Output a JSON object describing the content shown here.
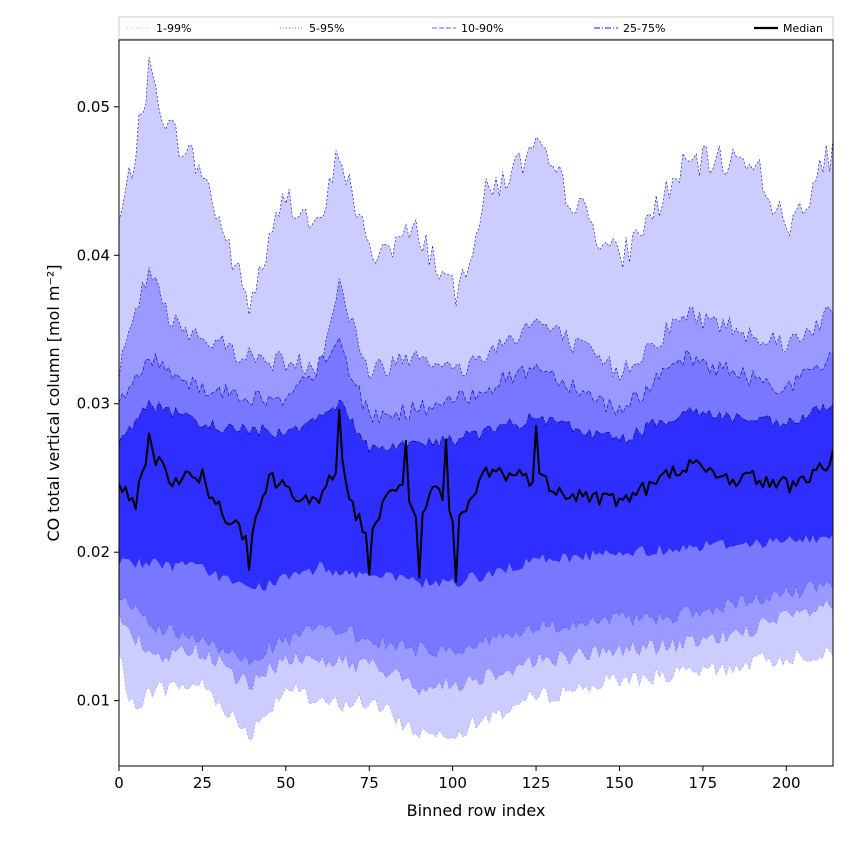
{
  "chart_data": {
    "type": "area",
    "xlabel": "Binned row index",
    "ylabel": "CO total vertical column [mol m⁻²]",
    "xlim": [
      0,
      214
    ],
    "ylim": [
      0.0056,
      0.0545
    ],
    "xticks": [
      0,
      25,
      50,
      75,
      100,
      125,
      150,
      175,
      200
    ],
    "yticks": [
      0.01,
      0.02,
      0.03,
      0.04,
      0.05
    ],
    "ytick_labels": [
      "0.01",
      "0.02",
      "0.03",
      "0.04",
      "0.05"
    ],
    "grid": false,
    "legend_position": "top",
    "legend": [
      {
        "label": "1-99%",
        "style": "dotted",
        "color": "#c8c8ff"
      },
      {
        "label": "5-95%",
        "style": "dotted",
        "color": "#7777ff"
      },
      {
        "label": "10-90%",
        "style": "dashed",
        "color": "#8080ff"
      },
      {
        "label": "25-75%",
        "style": "dashdot",
        "color": "#4444ff"
      },
      {
        "label": "Median",
        "style": "solid",
        "color": "#000000"
      }
    ],
    "bands": [
      {
        "name": "1-99%",
        "fill": "#ccccff",
        "stroke": "#0000cc",
        "low_anchors": [
          [
            0,
            0.0135
          ],
          [
            3,
            0.0095
          ],
          [
            10,
            0.0108
          ],
          [
            25,
            0.0112
          ],
          [
            39,
            0.0078
          ],
          [
            50,
            0.011
          ],
          [
            60,
            0.0098
          ],
          [
            75,
            0.01
          ],
          [
            90,
            0.0079
          ],
          [
            101,
            0.008
          ],
          [
            125,
            0.0103
          ],
          [
            150,
            0.0115
          ],
          [
            175,
            0.012
          ],
          [
            200,
            0.013
          ],
          [
            214,
            0.0135
          ]
        ],
        "high_anchors": [
          [
            0,
            0.042
          ],
          [
            5,
            0.047
          ],
          [
            9,
            0.0523
          ],
          [
            15,
            0.0485
          ],
          [
            25,
            0.0455
          ],
          [
            39,
            0.0365
          ],
          [
            50,
            0.044
          ],
          [
            60,
            0.0415
          ],
          [
            66,
            0.047
          ],
          [
            75,
            0.04
          ],
          [
            90,
            0.0415
          ],
          [
            101,
            0.037
          ],
          [
            110,
            0.044
          ],
          [
            125,
            0.047
          ],
          [
            150,
            0.0395
          ],
          [
            170,
            0.046
          ],
          [
            190,
            0.0465
          ],
          [
            200,
            0.0415
          ],
          [
            214,
            0.047
          ]
        ],
        "low_noise": 0.0012,
        "high_noise": 0.0022
      },
      {
        "name": "5-95%",
        "fill": "#9999ff",
        "stroke": "#0000cc",
        "low_anchors": [
          [
            0,
            0.0155
          ],
          [
            10,
            0.013
          ],
          [
            25,
            0.0135
          ],
          [
            39,
            0.011
          ],
          [
            50,
            0.013
          ],
          [
            75,
            0.0125
          ],
          [
            90,
            0.011
          ],
          [
            101,
            0.0112
          ],
          [
            125,
            0.0128
          ],
          [
            150,
            0.0135
          ],
          [
            175,
            0.014
          ],
          [
            214,
            0.0165
          ]
        ],
        "high_anchors": [
          [
            0,
            0.032
          ],
          [
            9,
            0.039
          ],
          [
            15,
            0.0355
          ],
          [
            25,
            0.0345
          ],
          [
            40,
            0.033
          ],
          [
            60,
            0.0325
          ],
          [
            66,
            0.038
          ],
          [
            75,
            0.032
          ],
          [
            90,
            0.0335
          ],
          [
            101,
            0.032
          ],
          [
            125,
            0.0355
          ],
          [
            150,
            0.032
          ],
          [
            170,
            0.036
          ],
          [
            200,
            0.034
          ],
          [
            214,
            0.036
          ]
        ],
        "low_noise": 0.0012,
        "high_noise": 0.0015
      },
      {
        "name": "10-90%",
        "fill": "#7777ff",
        "stroke": "#0000cc",
        "low_anchors": [
          [
            0,
            0.017
          ],
          [
            10,
            0.015
          ],
          [
            39,
            0.013
          ],
          [
            60,
            0.015
          ],
          [
            90,
            0.0135
          ],
          [
            101,
            0.0135
          ],
          [
            125,
            0.015
          ],
          [
            150,
            0.0155
          ],
          [
            175,
            0.016
          ],
          [
            214,
            0.018
          ]
        ],
        "high_anchors": [
          [
            0,
            0.03
          ],
          [
            9,
            0.033
          ],
          [
            25,
            0.031
          ],
          [
            50,
            0.03
          ],
          [
            66,
            0.034
          ],
          [
            75,
            0.029
          ],
          [
            100,
            0.03
          ],
          [
            125,
            0.0325
          ],
          [
            150,
            0.0295
          ],
          [
            170,
            0.033
          ],
          [
            200,
            0.031
          ],
          [
            214,
            0.033
          ]
        ],
        "low_noise": 0.0011,
        "high_noise": 0.0012
      },
      {
        "name": "25-75%",
        "fill": "#2e2eff",
        "stroke": "#000066",
        "low_anchors": [
          [
            0,
            0.0195
          ],
          [
            25,
            0.019
          ],
          [
            39,
            0.0175
          ],
          [
            60,
            0.019
          ],
          [
            90,
            0.018
          ],
          [
            101,
            0.018
          ],
          [
            125,
            0.0195
          ],
          [
            150,
            0.02
          ],
          [
            175,
            0.0205
          ],
          [
            214,
            0.021
          ]
        ],
        "high_anchors": [
          [
            0,
            0.0275
          ],
          [
            9,
            0.03
          ],
          [
            25,
            0.0285
          ],
          [
            50,
            0.028
          ],
          [
            66,
            0.03
          ],
          [
            75,
            0.027
          ],
          [
            100,
            0.0275
          ],
          [
            125,
            0.029
          ],
          [
            150,
            0.0275
          ],
          [
            170,
            0.0295
          ],
          [
            200,
            0.0285
          ],
          [
            214,
            0.03
          ]
        ],
        "low_noise": 0.0008,
        "high_noise": 0.0009
      }
    ],
    "median": {
      "name": "Median",
      "color": "#000000",
      "anchors": [
        [
          0,
          0.024
        ],
        [
          5,
          0.0235
        ],
        [
          9,
          0.027
        ],
        [
          15,
          0.025
        ],
        [
          25,
          0.025
        ],
        [
          30,
          0.023
        ],
        [
          39,
          0.021
        ],
        [
          45,
          0.025
        ],
        [
          50,
          0.0245
        ],
        [
          60,
          0.023
        ],
        [
          66,
          0.0265
        ],
        [
          70,
          0.023
        ],
        [
          75,
          0.021
        ],
        [
          80,
          0.0235
        ],
        [
          85,
          0.025
        ],
        [
          90,
          0.0215
        ],
        [
          95,
          0.0245
        ],
        [
          101,
          0.0215
        ],
        [
          110,
          0.0255
        ],
        [
          125,
          0.025
        ],
        [
          135,
          0.024
        ],
        [
          150,
          0.0235
        ],
        [
          160,
          0.0245
        ],
        [
          170,
          0.026
        ],
        [
          180,
          0.025
        ],
        [
          190,
          0.025
        ],
        [
          200,
          0.0245
        ],
        [
          210,
          0.0255
        ],
        [
          214,
          0.0265
        ]
      ],
      "noise": 0.0012,
      "dips": [
        [
          39,
          0.0188
        ],
        [
          75,
          0.0185
        ],
        [
          90,
          0.0183
        ],
        [
          101,
          0.018
        ]
      ],
      "spikes": [
        [
          9,
          0.028
        ],
        [
          66,
          0.0296
        ],
        [
          86,
          0.0275
        ],
        [
          98,
          0.0276
        ],
        [
          125,
          0.0285
        ]
      ]
    }
  }
}
